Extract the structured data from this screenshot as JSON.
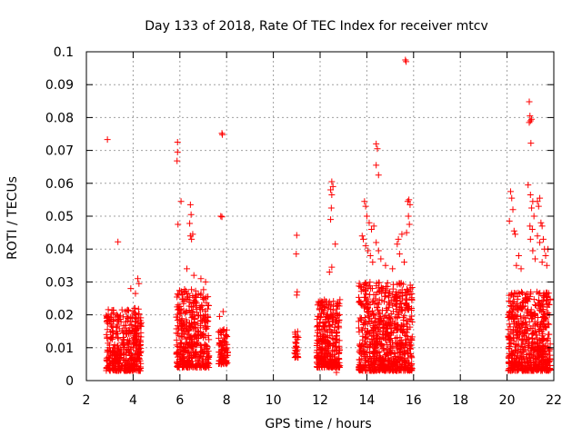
{
  "chart_data": {
    "type": "scatter",
    "title": "Day 133 of 2018, Rate Of TEC Index for receiver mtcv",
    "xlabel": "GPS time / hours",
    "ylabel": "ROTI / TECUs",
    "xlim": [
      2,
      22
    ],
    "ylim": [
      0,
      0.1
    ],
    "x_ticks": [
      2,
      4,
      6,
      8,
      10,
      12,
      14,
      16,
      18,
      20,
      22
    ],
    "x_tick_labels": [
      "2",
      "4",
      "6",
      "8",
      "10",
      "12",
      "14",
      "16",
      "18",
      "20",
      "22"
    ],
    "y_ticks": [
      0,
      0.01,
      0.02,
      0.03,
      0.04,
      0.05,
      0.06,
      0.07,
      0.08,
      0.09,
      0.1
    ],
    "y_tick_labels": [
      "0",
      "0.01",
      "0.02",
      "0.03",
      "0.04",
      "0.05",
      "0.06",
      "0.07",
      "0.08",
      "0.09",
      "0.1"
    ],
    "grid": true,
    "marker": "plus",
    "color": "#ff0000",
    "series": [
      {
        "name": "ROTI",
        "clusters": [
          {
            "x_range": [
              2.85,
              4.35
            ],
            "y_range": [
              0.003,
              0.022
            ],
            "count": 420
          },
          {
            "x_range": [
              5.85,
              7.25
            ],
            "y_range": [
              0.004,
              0.028
            ],
            "count": 420
          },
          {
            "x_range": [
              7.65,
              8.05
            ],
            "y_range": [
              0.005,
              0.016
            ],
            "count": 90
          },
          {
            "x_range": [
              10.9,
              11.1
            ],
            "y_range": [
              0.007,
              0.016
            ],
            "count": 30
          },
          {
            "x_range": [
              11.85,
              12.85
            ],
            "y_range": [
              0.004,
              0.025
            ],
            "count": 340
          },
          {
            "x_range": [
              13.65,
              15.95
            ],
            "y_range": [
              0.003,
              0.03
            ],
            "count": 760
          },
          {
            "x_range": [
              20.05,
              21.85
            ],
            "y_range": [
              0.003,
              0.027
            ],
            "count": 620
          }
        ],
        "points": [
          [
            2.9,
            0.0733
          ],
          [
            3.35,
            0.0422
          ],
          [
            4.2,
            0.031
          ],
          [
            4.25,
            0.0295
          ],
          [
            3.9,
            0.028
          ],
          [
            4.1,
            0.0265
          ],
          [
            5.9,
            0.0725
          ],
          [
            5.9,
            0.0695
          ],
          [
            5.88,
            0.0668
          ],
          [
            6.05,
            0.0545
          ],
          [
            5.92,
            0.0475
          ],
          [
            6.45,
            0.0535
          ],
          [
            6.48,
            0.0505
          ],
          [
            6.42,
            0.0478
          ],
          [
            6.45,
            0.044
          ],
          [
            6.5,
            0.043
          ],
          [
            6.55,
            0.0445
          ],
          [
            6.3,
            0.034
          ],
          [
            6.6,
            0.032
          ],
          [
            6.9,
            0.031
          ],
          [
            7.1,
            0.03
          ],
          [
            7.8,
            0.0752
          ],
          [
            7.82,
            0.0748
          ],
          [
            7.75,
            0.05
          ],
          [
            7.8,
            0.0498
          ],
          [
            7.7,
            0.0195
          ],
          [
            7.85,
            0.021
          ],
          [
            11.0,
            0.0442
          ],
          [
            10.98,
            0.0385
          ],
          [
            11.02,
            0.027
          ],
          [
            11.0,
            0.026
          ],
          [
            12.5,
            0.0605
          ],
          [
            12.45,
            0.058
          ],
          [
            12.55,
            0.059
          ],
          [
            12.5,
            0.0565
          ],
          [
            12.48,
            0.0525
          ],
          [
            12.45,
            0.049
          ],
          [
            12.65,
            0.0415
          ],
          [
            12.5,
            0.0345
          ],
          [
            12.4,
            0.033
          ],
          [
            12.7,
            0.0025
          ],
          [
            14.4,
            0.072
          ],
          [
            14.45,
            0.0705
          ],
          [
            14.4,
            0.0655
          ],
          [
            14.5,
            0.0625
          ],
          [
            13.9,
            0.0545
          ],
          [
            13.95,
            0.053
          ],
          [
            14.0,
            0.05
          ],
          [
            14.1,
            0.048
          ],
          [
            14.2,
            0.046
          ],
          [
            14.3,
            0.047
          ],
          [
            13.8,
            0.044
          ],
          [
            13.85,
            0.043
          ],
          [
            13.95,
            0.041
          ],
          [
            14.05,
            0.0395
          ],
          [
            14.15,
            0.038
          ],
          [
            14.25,
            0.036
          ],
          [
            14.4,
            0.042
          ],
          [
            14.5,
            0.0395
          ],
          [
            14.6,
            0.037
          ],
          [
            15.3,
            0.0415
          ],
          [
            15.35,
            0.043
          ],
          [
            15.5,
            0.0445
          ],
          [
            15.4,
            0.0385
          ],
          [
            15.6,
            0.036
          ],
          [
            15.75,
            0.0545
          ],
          [
            15.8,
            0.055
          ],
          [
            15.85,
            0.0535
          ],
          [
            15.78,
            0.05
          ],
          [
            15.82,
            0.0475
          ],
          [
            15.7,
            0.045
          ],
          [
            15.65,
            0.0975
          ],
          [
            15.68,
            0.097
          ],
          [
            14.8,
            0.035
          ],
          [
            15.1,
            0.034
          ],
          [
            20.15,
            0.0575
          ],
          [
            20.2,
            0.0555
          ],
          [
            20.1,
            0.0485
          ],
          [
            20.25,
            0.052
          ],
          [
            20.3,
            0.0455
          ],
          [
            20.35,
            0.0445
          ],
          [
            20.4,
            0.035
          ],
          [
            20.5,
            0.038
          ],
          [
            20.6,
            0.034
          ],
          [
            20.95,
            0.0848
          ],
          [
            20.98,
            0.0805
          ],
          [
            21.0,
            0.079
          ],
          [
            20.95,
            0.0785
          ],
          [
            21.05,
            0.0795
          ],
          [
            21.02,
            0.0722
          ],
          [
            20.9,
            0.0595
          ],
          [
            21.0,
            0.0565
          ],
          [
            21.1,
            0.0545
          ],
          [
            21.05,
            0.0525
          ],
          [
            21.15,
            0.05
          ],
          [
            20.98,
            0.047
          ],
          [
            21.08,
            0.046
          ],
          [
            21.0,
            0.043
          ],
          [
            21.1,
            0.0395
          ],
          [
            21.3,
            0.0545
          ],
          [
            21.35,
            0.053
          ],
          [
            21.4,
            0.0555
          ],
          [
            21.45,
            0.048
          ],
          [
            21.5,
            0.047
          ],
          [
            21.3,
            0.044
          ],
          [
            21.4,
            0.042
          ],
          [
            21.55,
            0.043
          ],
          [
            21.6,
            0.04
          ],
          [
            21.65,
            0.038
          ],
          [
            21.5,
            0.036
          ],
          [
            21.7,
            0.035
          ],
          [
            21.75,
            0.04
          ],
          [
            21.2,
            0.037
          ]
        ]
      }
    ]
  }
}
